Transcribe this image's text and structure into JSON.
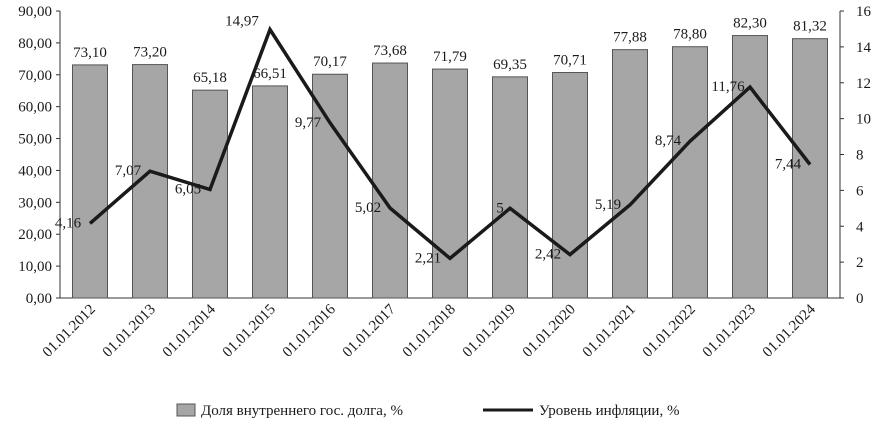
{
  "chart_data": {
    "type": "bar",
    "categories": [
      "01.01.2012",
      "01.01.2013",
      "01.01.2014",
      "01.01.2015",
      "01.01.2016",
      "01.01.2017",
      "01.01.2018",
      "01.01.2019",
      "01.01.2020",
      "01.01.2021",
      "01.01.2022",
      "01.01.2023",
      "01.01.2024"
    ],
    "series": [
      {
        "name": "Доля внутреннего гос. долга, %",
        "type": "bar",
        "axis": "left",
        "values": [
          73.1,
          73.2,
          65.18,
          66.51,
          70.17,
          73.68,
          71.79,
          69.35,
          70.71,
          77.88,
          78.8,
          82.3,
          81.32
        ],
        "labels": [
          "73,10",
          "73,20",
          "65,18",
          "66,51",
          "70,17",
          "73,68",
          "71,79",
          "69,35",
          "70,71",
          "77,88",
          "78,80",
          "82,30",
          "81,32"
        ]
      },
      {
        "name": "Уровень инфляции, %",
        "type": "line",
        "axis": "right",
        "values": [
          4.16,
          7.07,
          6.05,
          14.97,
          9.77,
          5.02,
          2.21,
          5.0,
          2.42,
          5.19,
          8.74,
          11.76,
          7.44
        ],
        "labels": [
          "4,16",
          "7,07",
          "6,05",
          "14,97",
          "9,77",
          "5,02",
          "2,21",
          "5",
          "2,42",
          "5,19",
          "8,74",
          "11,76",
          "7,44"
        ]
      }
    ],
    "ylim_left": [
      0,
      90
    ],
    "yticks_left": [
      "0,00",
      "10,00",
      "20,00",
      "30,00",
      "40,00",
      "50,00",
      "60,00",
      "70,00",
      "80,00",
      "90,00"
    ],
    "ylim_right": [
      0,
      16
    ],
    "yticks_right": [
      "0",
      "2",
      "4",
      "6",
      "8",
      "10",
      "12",
      "14",
      "16"
    ],
    "grid": false,
    "legend_position": "bottom",
    "colors": {
      "bar_fill": "#a6a6a6",
      "bar_stroke": "#555555",
      "line": "#1a1a1a"
    }
  }
}
